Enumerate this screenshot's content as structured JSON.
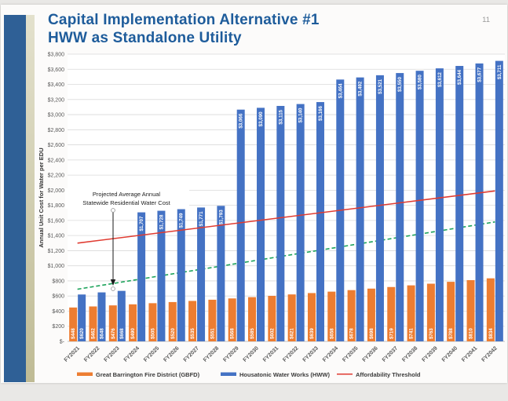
{
  "slide": {
    "title_line1": "Capital Implementation Alternative #1",
    "title_line2": "HWW as Standalone Utility",
    "page_number": "11"
  },
  "chart_data": {
    "type": "bar",
    "title": "",
    "xlabel": "",
    "ylabel": "Annual Unit Cost for Water per EDU",
    "ylim": [
      0,
      3800
    ],
    "ytick_step": 200,
    "grid": true,
    "legend_position": "bottom",
    "categories": [
      "FY2021",
      "FY2022",
      "FY2023",
      "FY2024",
      "FY2025",
      "FY2026",
      "FY2027",
      "FY2028",
      "FY2029",
      "FY2030",
      "FY2031",
      "FY2032",
      "FY2033",
      "FY2034",
      "FY2035",
      "FY2036",
      "FY2037",
      "FY2038",
      "FY2039",
      "FY2040",
      "FY2041",
      "FY2042"
    ],
    "series": [
      {
        "name": "Great Barrington Fire District (GBFD)",
        "color": "#ED7D31",
        "values": [
          448,
          462,
          476,
          490,
          505,
          520,
          535,
          551,
          568,
          585,
          602,
          621,
          639,
          658,
          678,
          698,
          719,
          741,
          763,
          788,
          810,
          834
        ]
      },
      {
        "name": "Housatonic Water Works (HWW)",
        "color": "#4472C4",
        "values": [
          620,
          648,
          668,
          1707,
          1728,
          1749,
          1771,
          1793,
          3066,
          3090,
          3115,
          3140,
          3166,
          3464,
          3492,
          3521,
          3550,
          3580,
          3612,
          3644,
          3677,
          3711
        ]
      }
    ],
    "lines": [
      {
        "name": "Affordability Threshold",
        "color": "#E03B31",
        "style": "solid",
        "start_value": 1300,
        "end_value": 1990,
        "drawn_over_bars": true
      },
      {
        "name": "Projected Average Annual Statewide Residential Water Cost",
        "color": "#1CA35B",
        "style": "dashed",
        "start_value": 690,
        "end_value": 1580,
        "drawn_over_bars": false
      }
    ],
    "annotation": {
      "line1": "Projected Average Annual",
      "line2": "Statewide Residential Water Cost",
      "arrow": "points down to dashed green line near FY2023"
    },
    "legend": [
      {
        "label": "Great Barrington Fire District (GBFD)",
        "swatch": "bar",
        "color": "#ED7D31"
      },
      {
        "label": "Housatonic Water Works (HWW)",
        "swatch": "bar",
        "color": "#4472C4"
      },
      {
        "label": "Affordability Threshold",
        "swatch": "line",
        "color": "#E03B31"
      }
    ],
    "colors": {
      "gridline": "#dadada",
      "axis_line": "#bfbfbf",
      "tick_label": "#595959",
      "bar_label": "#ffffff",
      "title_blue": "#1e5c9b"
    }
  }
}
